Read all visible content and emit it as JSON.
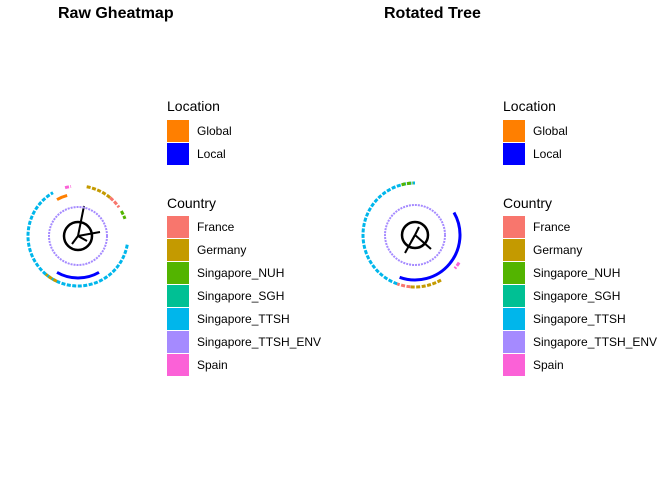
{
  "chart_data": [
    {
      "type": "circular-tree-heatmap",
      "title": "Raw Gheatmap",
      "rings": [
        {
          "name": "Location",
          "segments": [
            {
              "value": "Local",
              "from_deg": 150,
              "to_deg": 210
            },
            {
              "value": "Global",
              "from_deg": 330,
              "to_deg": 345
            }
          ]
        },
        {
          "name": "Country",
          "segments": [
            {
              "value": "Singapore_TTSH_ENV",
              "from_deg": 0,
              "to_deg": 360
            }
          ]
        },
        {
          "name": "Country",
          "segments": [
            {
              "value": "Singapore_TTSH",
              "from_deg": 100,
              "to_deg": 330
            },
            {
              "value": "Germany",
              "from_deg": 10,
              "to_deg": 40
            },
            {
              "value": "France",
              "from_deg": 40,
              "to_deg": 55
            },
            {
              "value": "Singapore_NUH",
              "from_deg": 60,
              "to_deg": 70
            },
            {
              "value": "Germany",
              "from_deg": 205,
              "to_deg": 220
            },
            {
              "value": "Spain",
              "from_deg": 345,
              "to_deg": 352
            }
          ]
        }
      ]
    },
    {
      "type": "circular-tree-heatmap",
      "title": "Rotated Tree",
      "rings": [
        {
          "name": "Location",
          "segments": [
            {
              "value": "Local",
              "from_deg": 60,
              "to_deg": 200
            }
          ]
        },
        {
          "name": "Country",
          "segments": [
            {
              "value": "Singapore_TTSH_ENV",
              "from_deg": 0,
              "to_deg": 360
            }
          ]
        },
        {
          "name": "Country",
          "segments": [
            {
              "value": "Singapore_TTSH",
              "from_deg": 200,
              "to_deg": 360
            },
            {
              "value": "Germany",
              "from_deg": 150,
              "to_deg": 185
            },
            {
              "value": "France",
              "from_deg": 185,
              "to_deg": 200
            },
            {
              "value": "Singapore_NUH",
              "from_deg": 345,
              "to_deg": 358
            },
            {
              "value": "Spain",
              "from_deg": 122,
              "to_deg": 130
            }
          ]
        }
      ]
    }
  ],
  "legends": {
    "location": {
      "title": "Location",
      "items": [
        {
          "label": "Global",
          "color": "#FF7F00"
        },
        {
          "label": "Local",
          "color": "#0000FF"
        }
      ]
    },
    "country": {
      "title": "Country",
      "items": [
        {
          "label": "France",
          "color": "#F8766D"
        },
        {
          "label": "Germany",
          "color": "#C49A00"
        },
        {
          "label": "Singapore_NUH",
          "color": "#53B400"
        },
        {
          "label": "Singapore_SGH",
          "color": "#00C094"
        },
        {
          "label": "Singapore_TTSH",
          "color": "#00B6EB"
        },
        {
          "label": "Singapore_TTSH_ENV",
          "color": "#A58AFF"
        },
        {
          "label": "Spain",
          "color": "#FB61D7"
        }
      ]
    }
  }
}
